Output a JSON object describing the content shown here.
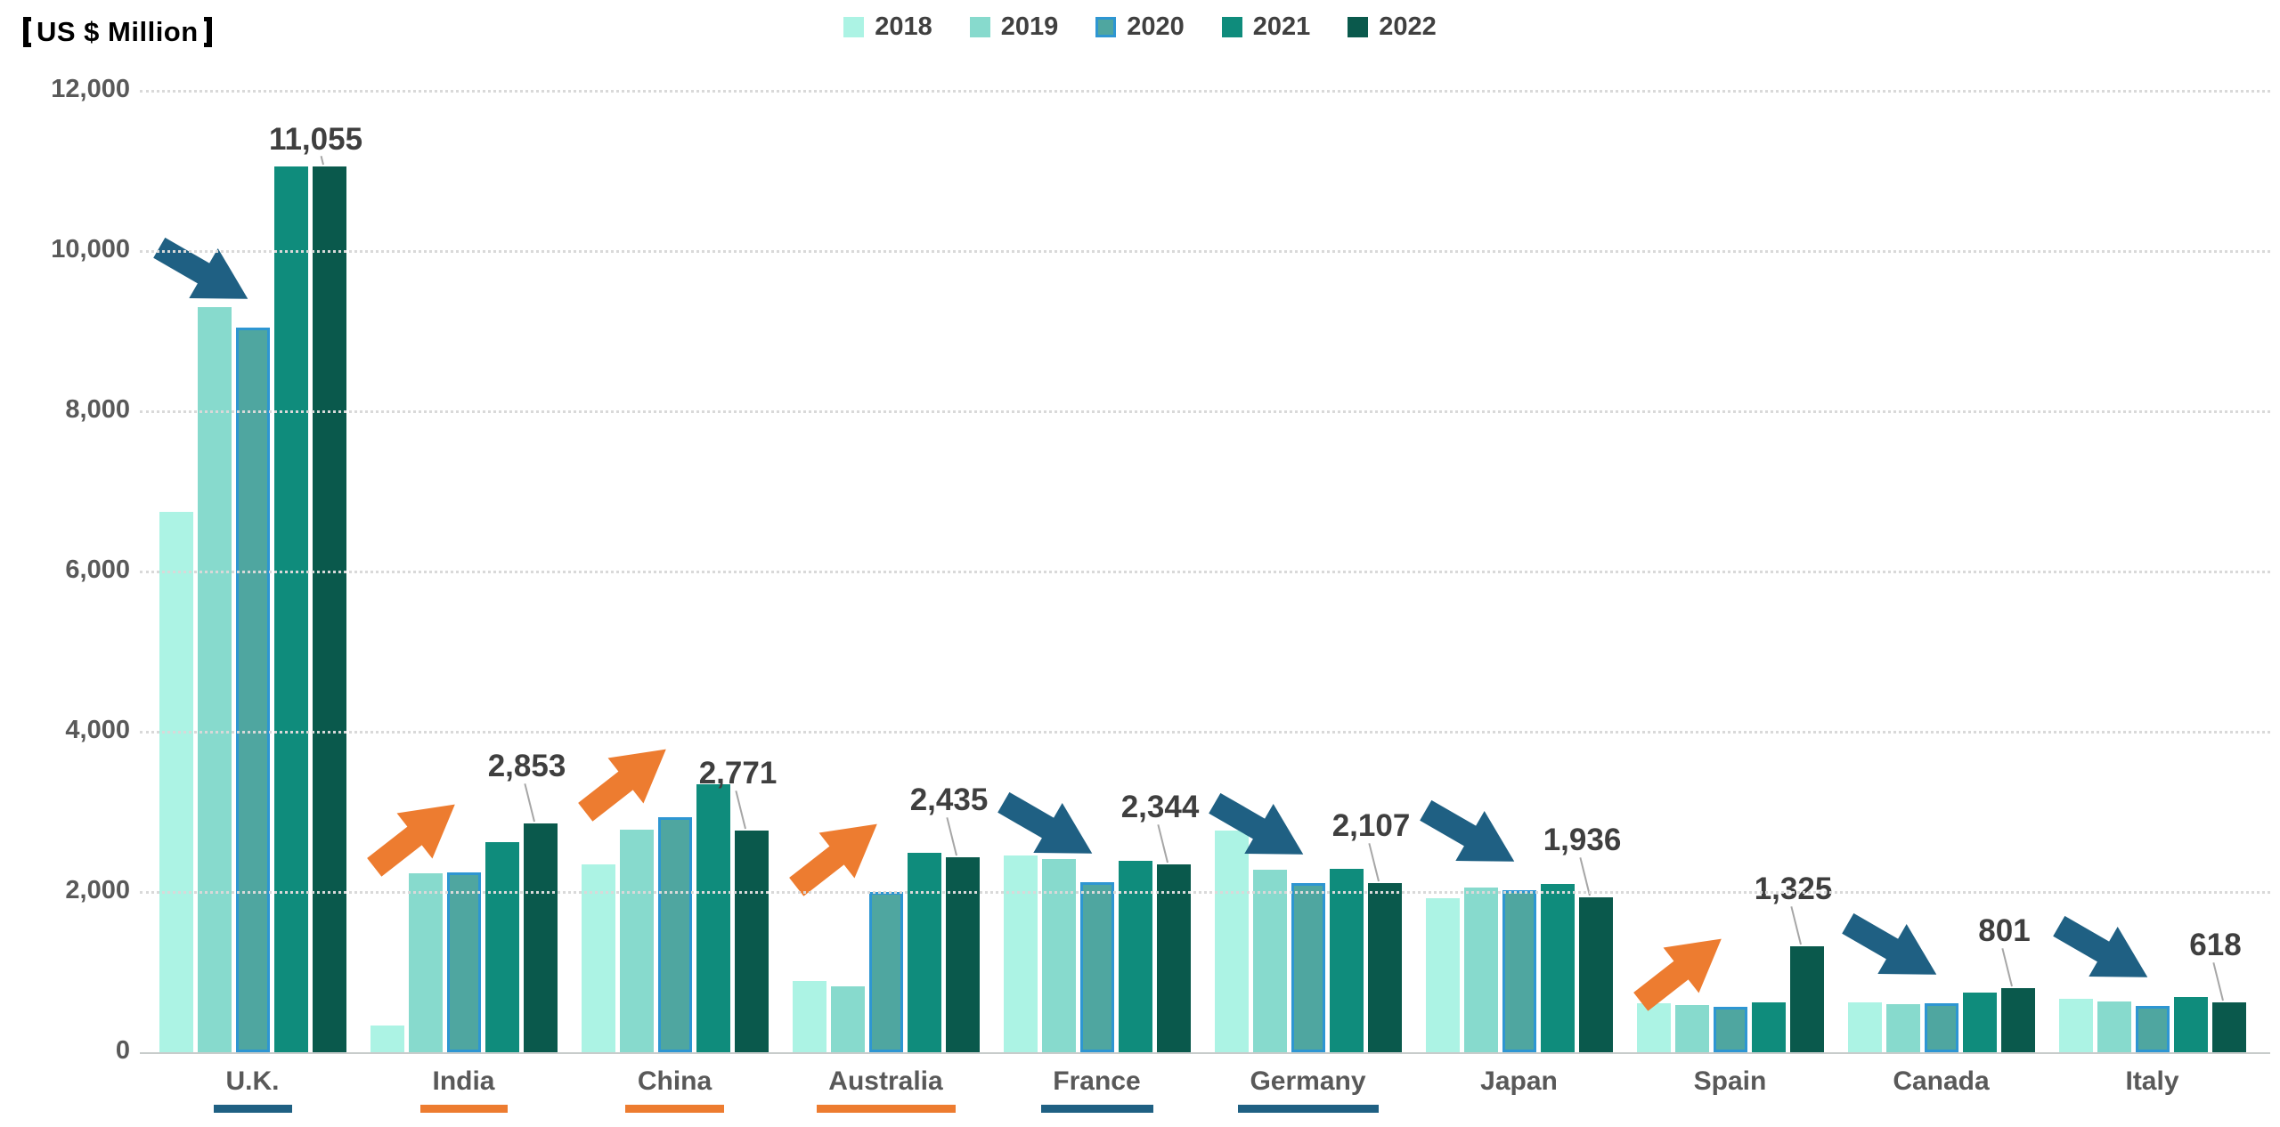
{
  "chart_data": {
    "type": "bar",
    "unit_label": "【US $ Million】",
    "unit_label_inner": "US $ Million",
    "legend_position": "top-center",
    "grid": "horizontal-dotted",
    "ylim": [
      0,
      12000
    ],
    "ytick_step": 2000,
    "yticks": [
      "0",
      "2,000",
      "4,000",
      "6,000",
      "8,000",
      "10,000",
      "12,000"
    ],
    "categories": [
      "U.K.",
      "India",
      "China",
      "Australia",
      "France",
      "Germany",
      "Japan",
      "Spain",
      "Canada",
      "Italy"
    ],
    "series": [
      {
        "name": "2018",
        "values": [
          6750,
          330,
          2340,
          890,
          2460,
          2770,
          1920,
          610,
          620,
          665
        ]
      },
      {
        "name": "2019",
        "values": [
          9300,
          2230,
          2780,
          820,
          2410,
          2280,
          2060,
          590,
          600,
          630
        ]
      },
      {
        "name": "2020",
        "values": [
          9050,
          2250,
          2930,
          2000,
          2120,
          2110,
          2020,
          570,
          610,
          580
        ]
      },
      {
        "name": "2021",
        "values": [
          11060,
          2620,
          3350,
          2490,
          2390,
          2290,
          2100,
          620,
          745,
          690
        ]
      },
      {
        "name": "2022",
        "values": [
          11055,
          2853,
          2771,
          2435,
          2344,
          2107,
          1936,
          1325,
          801,
          618
        ]
      }
    ],
    "callouts": [
      {
        "category": "U.K.",
        "label": "11,055",
        "value": 11055,
        "year": "2022",
        "trend": "down"
      },
      {
        "category": "India",
        "label": "2,853",
        "value": 2853,
        "year": "2022",
        "trend": "up"
      },
      {
        "category": "China",
        "label": "2,771",
        "value": 2771,
        "year": "2022",
        "trend": "up"
      },
      {
        "category": "Australia",
        "label": "2,435",
        "value": 2435,
        "year": "2022",
        "trend": "up"
      },
      {
        "category": "France",
        "label": "2,344",
        "value": 2344,
        "year": "2022",
        "trend": "down"
      },
      {
        "category": "Germany",
        "label": "2,107",
        "value": 2107,
        "year": "2022",
        "trend": "down"
      },
      {
        "category": "Japan",
        "label": "1,936",
        "value": 1936,
        "year": "2022",
        "trend": "down"
      },
      {
        "category": "Spain",
        "label": "1,325",
        "value": 1325,
        "year": "2022",
        "trend": "up"
      },
      {
        "category": "Canada",
        "label": "801",
        "value": 801,
        "year": "2022",
        "trend": "down"
      },
      {
        "category": "Italy",
        "label": "618",
        "value": 618,
        "year": "2022",
        "trend": "down"
      }
    ],
    "category_underlines": [
      "blue",
      "orange",
      "orange",
      "orange",
      "blue",
      "blue",
      null,
      null,
      null,
      null
    ],
    "colors": {
      "2018": "#acf3e4",
      "2019": "#87dacd",
      "2020": "#4fa6a0",
      "2020_border": "#2e96d2",
      "2021": "#0f8c7c",
      "2022": "#0a594c",
      "arrow_up": "#ed7c30",
      "arrow_down": "#1f6083",
      "underline_blue": "#1f6083",
      "underline_orange": "#ed7c30",
      "axis_text": "#595959",
      "callout_text": "#3f3f3f",
      "gridline": "#d9d9d9"
    }
  }
}
